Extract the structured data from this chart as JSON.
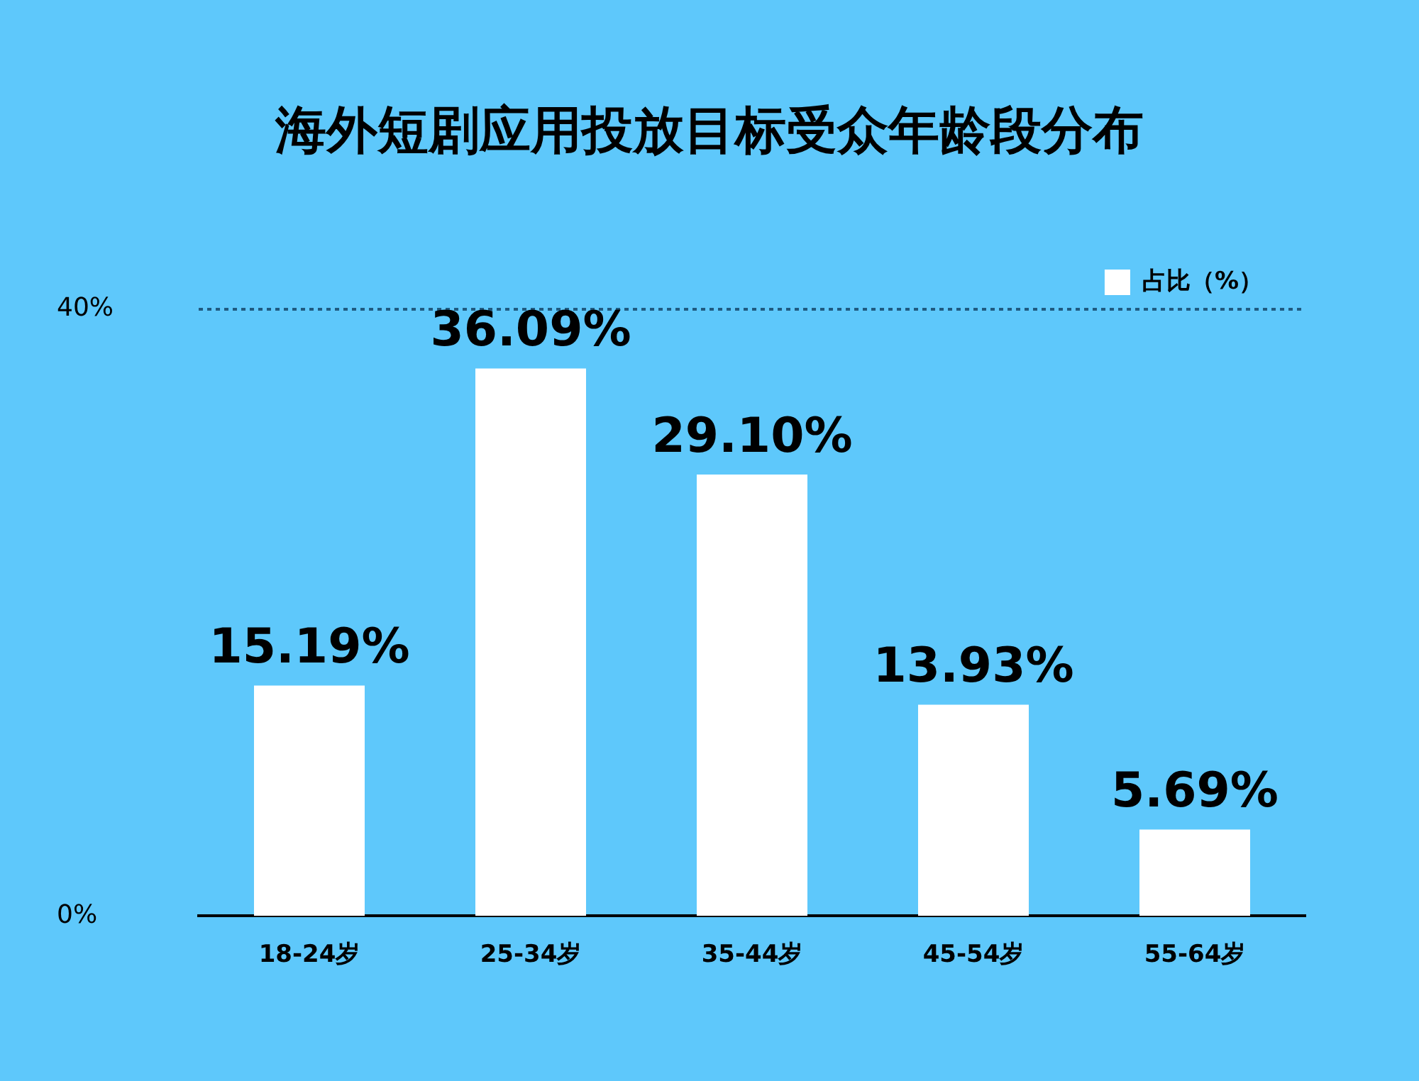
{
  "chart_data": {
    "type": "bar",
    "title": "海外短剧应用投放目标受众年龄段分布",
    "categories": [
      "18-24岁",
      "25-34岁",
      "35-44岁",
      "45-54岁",
      "55-64岁"
    ],
    "series": [
      {
        "name": "占比（%）",
        "color": "#ffffff",
        "values": [
          15.19,
          36.09,
          29.1,
          13.93,
          5.69
        ]
      }
    ],
    "value_labels": [
      "15.19%",
      "36.09%",
      "29.10%",
      "13.93%",
      "5.69%"
    ],
    "ylim": [
      0,
      40
    ],
    "yticks": [
      {
        "value": 0,
        "label": "0%"
      },
      {
        "value": 40,
        "label": "40%"
      }
    ],
    "ref_lines": [
      {
        "axis": "y",
        "value": 40,
        "color": "#1f5a80",
        "line_style": "dotted"
      }
    ],
    "legend": "top right"
  }
}
